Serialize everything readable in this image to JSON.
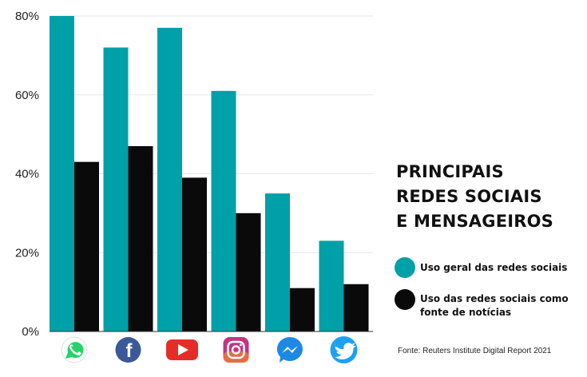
{
  "chart_data": {
    "type": "bar",
    "title": "PRINCIPAIS REDES SOCIAIS E MENSAGEIROS",
    "title_lines": [
      "PRINCIPAIS",
      "REDES SOCIAIS",
      "E MENSAGEIROS"
    ],
    "categories": [
      "WhatsApp",
      "Facebook",
      "YouTube",
      "Instagram",
      "Messenger",
      "Twitter"
    ],
    "category_icons": [
      "whatsapp-icon",
      "facebook-icon",
      "youtube-icon",
      "instagram-icon",
      "messenger-icon",
      "twitter-icon"
    ],
    "series": [
      {
        "name": "Uso geral das redes sociais",
        "values": [
          80,
          72,
          77,
          61,
          35,
          23
        ],
        "color": "#00a0a8"
      },
      {
        "name": "Uso das redes sociais como fonte de notícias",
        "values": [
          43,
          47,
          39,
          30,
          11,
          12
        ],
        "color": "#0a0a0a"
      }
    ],
    "legend": [
      {
        "label": "Uso geral das redes sociais",
        "color": "#00a0a8"
      },
      {
        "label_lines": [
          "Uso das redes sociais como",
          "fonte de notícias"
        ],
        "color": "#0a0a0a"
      }
    ],
    "yticks": [
      "0%",
      "20%",
      "40%",
      "60%",
      "80%"
    ],
    "ytick_values": [
      0,
      20,
      40,
      60,
      80
    ],
    "ylim": [
      0,
      80
    ],
    "grid": true,
    "xlabel": "",
    "ylabel": "",
    "source": "Fonte: Reuters Institute Digital Report 2021"
  }
}
